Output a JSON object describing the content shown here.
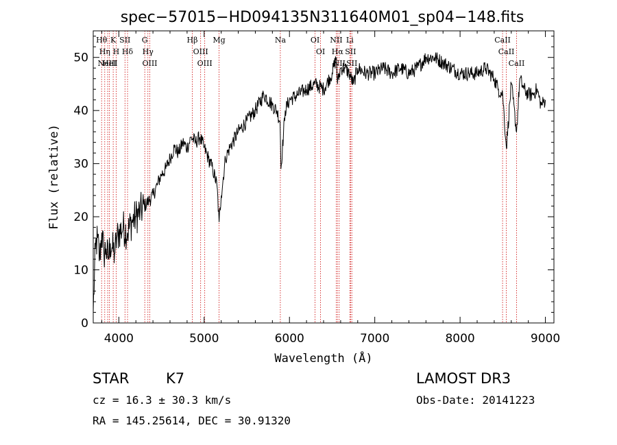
{
  "chart_data": {
    "type": "line",
    "title": "spec−57015−HD094135N311640M01_sp04−148.fits",
    "xlabel": "Wavelength (Å)",
    "ylabel": "Flux (relative)",
    "xlim": [
      3700,
      9100
    ],
    "ylim": [
      0,
      55
    ],
    "xticks": [
      4000,
      5000,
      6000,
      7000,
      8000,
      9000
    ],
    "yticks": [
      0,
      10,
      20,
      30,
      40,
      50
    ],
    "grid": false,
    "series": [
      {
        "x": [
          3700,
          3725,
          3750,
          3775,
          3800,
          3825,
          3850,
          3875,
          3900,
          3925,
          3950,
          3975,
          4000,
          4050,
          4100,
          4150,
          4200,
          4250,
          4300,
          4350,
          4400,
          4450,
          4500,
          4550,
          4600,
          4650,
          4700,
          4750,
          4800,
          4850,
          4900,
          4950,
          5000,
          5050,
          5100,
          5150,
          5175,
          5200,
          5250,
          5300,
          5400,
          5500,
          5600,
          5700,
          5800,
          5850,
          5890,
          5900,
          5950,
          6000,
          6100,
          6200,
          6300,
          6400,
          6500,
          6550,
          6563,
          6600,
          6650,
          6700,
          6750,
          6800,
          6900,
          7000,
          7100,
          7200,
          7300,
          7400,
          7500,
          7600,
          7700,
          7800,
          7900,
          8000,
          8100,
          8200,
          8300,
          8400,
          8450,
          8500,
          8542,
          8600,
          8662,
          8700,
          8750,
          8800,
          8850,
          8900,
          8950,
          9000
        ],
        "values": [
          2,
          14,
          16,
          12,
          17,
          13,
          14,
          12,
          15,
          14,
          13,
          16,
          17,
          18,
          17,
          19,
          20,
          21,
          22,
          23,
          24,
          26,
          28,
          29,
          31,
          33,
          32,
          34,
          33,
          35,
          34,
          35,
          33,
          31,
          29,
          26,
          19,
          24,
          31,
          33,
          36,
          38,
          40,
          43,
          41,
          40,
          38,
          29,
          40,
          42,
          43,
          44,
          45,
          44,
          47,
          50,
          45,
          48,
          48,
          47,
          45,
          48,
          47,
          47,
          48,
          47,
          48,
          47,
          48,
          50,
          50,
          49,
          48,
          47,
          47,
          47,
          48,
          46,
          44,
          43,
          33,
          45,
          36,
          46,
          44,
          43,
          43,
          44,
          41,
          42
        ]
      }
    ],
    "line_markers": [
      {
        "x": 3798,
        "label": "Hθ"
      },
      {
        "x": 3835,
        "label": "Hη"
      },
      {
        "x": 3869,
        "label": "NeIII"
      },
      {
        "x": 3889,
        "label": "HeI"
      },
      {
        "x": 3934,
        "label": "K"
      },
      {
        "x": 3969,
        "label": "H"
      },
      {
        "x": 4072,
        "label": "SII"
      },
      {
        "x": 4102,
        "label": "Hδ"
      },
      {
        "x": 4304,
        "label": "G"
      },
      {
        "x": 4341,
        "label": "Hγ"
      },
      {
        "x": 4363,
        "label": "OIII"
      },
      {
        "x": 4861,
        "label": "Hβ"
      },
      {
        "x": 4959,
        "label": "OIII"
      },
      {
        "x": 5007,
        "label": "OIII"
      },
      {
        "x": 5175,
        "label": "Mg"
      },
      {
        "x": 5893,
        "label": "Na"
      },
      {
        "x": 6300,
        "label": "OI"
      },
      {
        "x": 6364,
        "label": "OI"
      },
      {
        "x": 6548,
        "label": "NII"
      },
      {
        "x": 6563,
        "label": "Hα"
      },
      {
        "x": 6583,
        "label": "NII"
      },
      {
        "x": 6708,
        "label": "Li"
      },
      {
        "x": 6716,
        "label": "SII"
      },
      {
        "x": 6731,
        "label": "SII"
      },
      {
        "x": 8498,
        "label": "CaII"
      },
      {
        "x": 8542,
        "label": "CaII"
      },
      {
        "x": 8662,
        "label": "CaII"
      }
    ]
  },
  "info": {
    "class": "STAR",
    "subclass": "K7",
    "survey": "LAMOST DR3",
    "cz": "cz = 16.3 ± 30.3 km/s",
    "obs_date": "Obs-Date: 20141223",
    "coords": "RA = 145.25614, DEC =  30.91320"
  },
  "colors": {
    "spectrum": "#000000",
    "marker_line": "#cc0000",
    "axes": "#000000"
  }
}
